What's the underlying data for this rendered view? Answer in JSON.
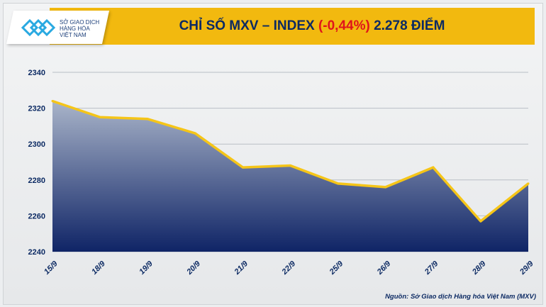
{
  "header": {
    "title_prefix": "CHỈ SỐ MXV – INDEX ",
    "title_change": "(-0,44%)",
    "title_suffix": " 2.278 ĐIỂM",
    "logo_text": [
      "SỞ GIAO DỊCH",
      "HÀNG HÓA",
      "VIỆT NAM"
    ]
  },
  "source": "Nguồn: Sở Giao dịch Hàng hóa Việt Nam (MXV)",
  "colors": {
    "banner": "#f2b90f",
    "line": "#f5c518",
    "area_top": "#a9b4c9",
    "area_bottom": "#0f2466",
    "negative": "#e0141b",
    "text": "#0c2a63"
  },
  "chart_data": {
    "type": "area",
    "title": "CHỈ SỐ MXV – INDEX (-0,44%) 2.278 ĐIỂM",
    "categories": [
      "15/9",
      "18/9",
      "19/9",
      "20/9",
      "21/9",
      "22/9",
      "25/9",
      "26/9",
      "27/9",
      "28/9",
      "29/9"
    ],
    "values": [
      2324,
      2315,
      2314,
      2306,
      2287,
      2288,
      2278,
      2276,
      2287,
      2257,
      2278
    ],
    "ylim": [
      2240,
      2340
    ],
    "yticks": [
      2240,
      2260,
      2280,
      2300,
      2320,
      2340
    ],
    "grid": true,
    "xlabel": "",
    "ylabel": ""
  }
}
